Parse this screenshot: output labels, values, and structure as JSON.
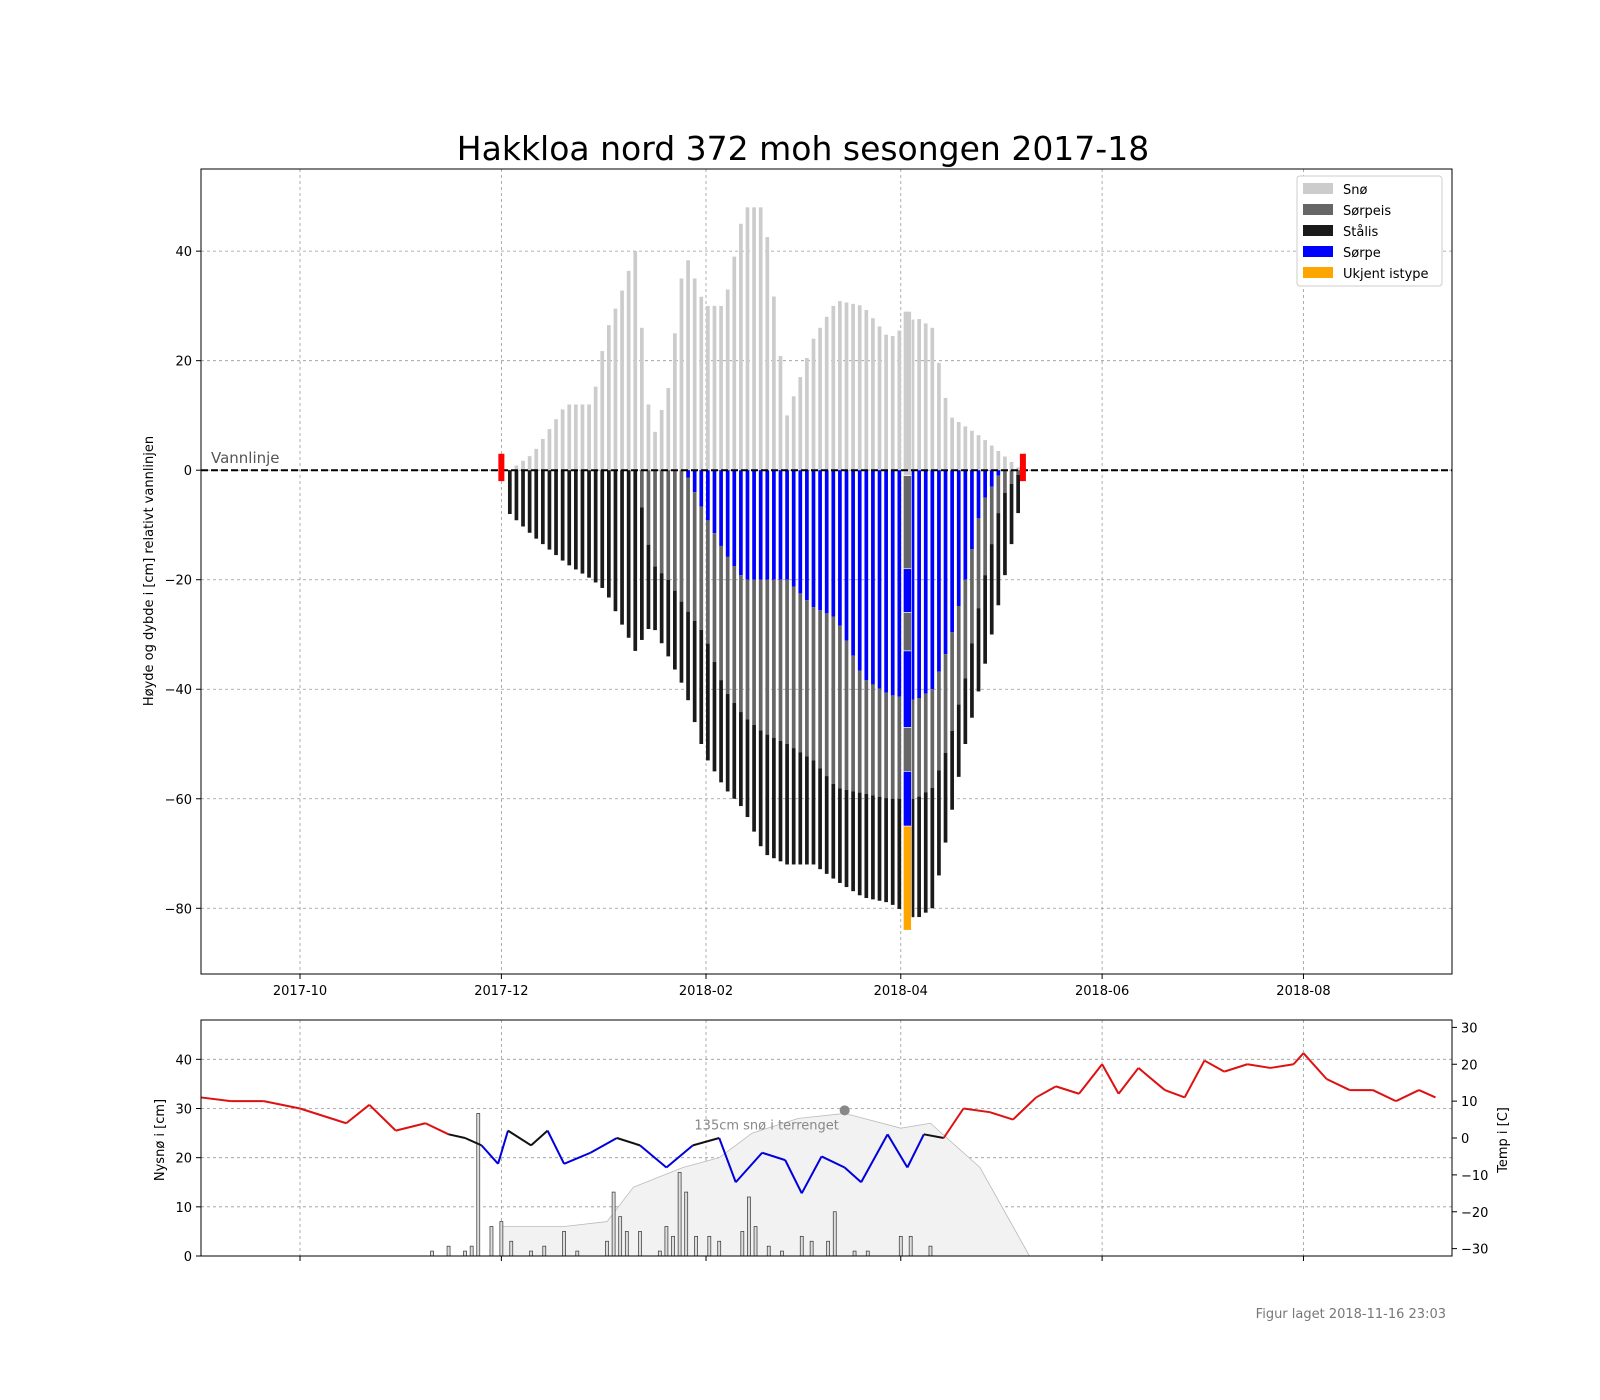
{
  "chart_data": [
    {
      "type": "bar",
      "title": "Hakkloa nord 372 moh sesongen 2017-18",
      "xlabel": "",
      "ylabel": "Høyde og dybde i [cm] relativt vannlinjen",
      "xlim": [
        "2017-09-01",
        "2018-09-15"
      ],
      "ylim": [
        -92,
        55
      ],
      "grid": true,
      "x_tick_labels": [
        "2017-10",
        "2017-12",
        "2018-02",
        "2018-04",
        "2018-06",
        "2018-08"
      ],
      "y_ticks": [
        40,
        20,
        0,
        -20,
        -40,
        -60,
        -80
      ],
      "y_tick_labels": [
        "40",
        "20",
        "0",
        "−20",
        "−40",
        "−60",
        "−80"
      ],
      "waterline_label": "Vannlinje",
      "legend_position": "top-right",
      "legend": [
        {
          "name": "Snø",
          "color": "#cccccc"
        },
        {
          "name": "Sørpeis",
          "color": "#666666"
        },
        {
          "name": "Stålis",
          "color": "#1a1a1a"
        },
        {
          "name": "Sørpe",
          "color": "#0000ff"
        },
        {
          "name": "Ukjent istype",
          "color": "#ffa500"
        }
      ],
      "ice_start_date": "2017-12-01",
      "ice_end_date": "2018-05-08",
      "ice_profile": [
        {
          "date": "2017-12-03",
          "snow_top": 0,
          "slush_bottom": null,
          "sorpeis_bottom": null,
          "ice_bottom": -8
        },
        {
          "date": "2017-12-10",
          "snow_top": 3,
          "slush_bottom": null,
          "sorpeis_bottom": null,
          "ice_bottom": -12
        },
        {
          "date": "2017-12-20",
          "snow_top": 12,
          "slush_bottom": null,
          "sorpeis_bottom": null,
          "ice_bottom": -17
        },
        {
          "date": "2017-12-28",
          "snow_top": 12,
          "slush_bottom": null,
          "sorpeis_bottom": null,
          "ice_bottom": -20
        },
        {
          "date": "2018-01-01",
          "snow_top": 25,
          "slush_bottom": null,
          "sorpeis_bottom": null,
          "ice_bottom": -22
        },
        {
          "date": "2018-01-05",
          "snow_top": 31,
          "slush_bottom": null,
          "sorpeis_bottom": null,
          "ice_bottom": -27
        },
        {
          "date": "2018-01-10",
          "snow_top": 40,
          "slush_bottom": null,
          "sorpeis_bottom": null,
          "ice_bottom": -33
        },
        {
          "date": "2018-01-15",
          "snow_top": 5,
          "slush_bottom": null,
          "sorpeis_bottom": -17,
          "ice_bottom": -28
        },
        {
          "date": "2018-01-20",
          "snow_top": 15,
          "slush_bottom": null,
          "sorpeis_bottom": -20,
          "ice_bottom": -34
        },
        {
          "date": "2018-01-25",
          "snow_top": 40,
          "slush_bottom": null,
          "sorpeis_bottom": -25,
          "ice_bottom": -40
        },
        {
          "date": "2018-01-31",
          "snow_top": 30,
          "slush_bottom": -8,
          "sorpeis_bottom": -30,
          "ice_bottom": -52
        },
        {
          "date": "2018-02-06",
          "snow_top": 30,
          "slush_bottom": -15,
          "sorpeis_bottom": -40,
          "ice_bottom": -58
        },
        {
          "date": "2018-02-12",
          "snow_top": 48,
          "slush_bottom": -20,
          "sorpeis_bottom": -45,
          "ice_bottom": -62
        },
        {
          "date": "2018-02-18",
          "snow_top": 48,
          "slush_bottom": -20,
          "sorpeis_bottom": -48,
          "ice_bottom": -70
        },
        {
          "date": "2018-02-25",
          "snow_top": 10,
          "slush_bottom": -20,
          "sorpeis_bottom": -50,
          "ice_bottom": -72
        },
        {
          "date": "2018-03-05",
          "snow_top": 24,
          "slush_bottom": -25,
          "sorpeis_bottom": -53,
          "ice_bottom": -72
        },
        {
          "date": "2018-03-12",
          "snow_top": 31,
          "slush_bottom": -27,
          "sorpeis_bottom": -58,
          "ice_bottom": -75
        },
        {
          "date": "2018-03-20",
          "snow_top": 30,
          "slush_bottom": -38,
          "sorpeis_bottom": -59,
          "ice_bottom": -78
        },
        {
          "date": "2018-03-28",
          "snow_top": 24,
          "slush_bottom": -41,
          "sorpeis_bottom": -60,
          "ice_bottom": -79
        },
        {
          "date": "2018-04-05",
          "snow_top": 28,
          "slush_bottom": -42,
          "sorpeis_bottom": -60,
          "ice_bottom": -82
        },
        {
          "date": "2018-04-10",
          "snow_top": 26,
          "slush_bottom": -40,
          "sorpeis_bottom": -58,
          "ice_bottom": -80
        },
        {
          "date": "2018-04-15",
          "snow_top": 10,
          "slush_bottom": -32,
          "sorpeis_bottom": -50,
          "ice_bottom": -65
        },
        {
          "date": "2018-04-20",
          "snow_top": 8,
          "slush_bottom": -20,
          "sorpeis_bottom": -38,
          "ice_bottom": -50
        },
        {
          "date": "2018-04-25",
          "snow_top": 6,
          "slush_bottom": -6,
          "sorpeis_bottom": -22,
          "ice_bottom": -38
        },
        {
          "date": "2018-05-01",
          "snow_top": 3,
          "slush_bottom": null,
          "sorpeis_bottom": -5,
          "ice_bottom": -22
        },
        {
          "date": "2018-05-07",
          "snow_top": 0,
          "slush_bottom": null,
          "sorpeis_bottom": null,
          "ice_bottom": -5
        }
      ],
      "measurement": {
        "date": "2018-04-03",
        "layers": [
          {
            "type": "Snø",
            "from": 29,
            "to": -1
          },
          {
            "type": "Sørpeis",
            "from": -1,
            "to": -18
          },
          {
            "type": "Sørpe",
            "from": -18,
            "to": -26
          },
          {
            "type": "Sørpeis",
            "from": -26,
            "to": -33
          },
          {
            "type": "Sørpe",
            "from": -33,
            "to": -47
          },
          {
            "type": "Sørpeis",
            "from": -47,
            "to": -55
          },
          {
            "type": "Sørpe",
            "from": -55,
            "to": -65
          },
          {
            "type": "Ukjent istype",
            "from": -65,
            "to": -84
          }
        ]
      }
    },
    {
      "type": "line",
      "xlim": [
        "2017-09-01",
        "2018-09-15"
      ],
      "ylabel": "Nysnø i [cm]",
      "ylim": [
        0,
        48
      ],
      "y_ticks": [
        0,
        10,
        20,
        30,
        40
      ],
      "y_tick_labels": [
        "0",
        "10",
        "20",
        "30",
        "40"
      ],
      "ylabel_right": "Temp i [C]",
      "ylim_right": [
        -32,
        32
      ],
      "y_ticks_right": [
        30,
        20,
        10,
        0,
        -10,
        -20,
        -30
      ],
      "y_tick_labels_right": [
        "30",
        "20",
        "10",
        "0",
        "−10",
        "−20",
        "−30"
      ],
      "snow_depth_annotation": "135cm snø i terrenget",
      "snow_depth_max": {
        "date": "2018-03-15",
        "temp": 7.5
      },
      "temperature": [
        {
          "date": "2017-09-01",
          "value": 11
        },
        {
          "date": "2017-09-10",
          "value": 10
        },
        {
          "date": "2017-09-20",
          "value": 10
        },
        {
          "date": "2017-10-01",
          "value": 8
        },
        {
          "date": "2017-10-08",
          "value": 6
        },
        {
          "date": "2017-10-15",
          "value": 4
        },
        {
          "date": "2017-10-22",
          "value": 9
        },
        {
          "date": "2017-10-30",
          "value": 2
        },
        {
          "date": "2017-11-08",
          "value": 4
        },
        {
          "date": "2017-11-15",
          "value": 1
        },
        {
          "date": "2017-11-20",
          "value": 0
        },
        {
          "date": "2017-11-25",
          "value": -2
        },
        {
          "date": "2017-11-30",
          "value": -7
        },
        {
          "date": "2017-12-03",
          "value": 2
        },
        {
          "date": "2017-12-10",
          "value": -2
        },
        {
          "date": "2017-12-15",
          "value": 2
        },
        {
          "date": "2017-12-20",
          "value": -7
        },
        {
          "date": "2017-12-28",
          "value": -4
        },
        {
          "date": "2018-01-05",
          "value": 0
        },
        {
          "date": "2018-01-12",
          "value": -2
        },
        {
          "date": "2018-01-20",
          "value": -8
        },
        {
          "date": "2018-01-28",
          "value": -2
        },
        {
          "date": "2018-02-05",
          "value": 0
        },
        {
          "date": "2018-02-10",
          "value": -12
        },
        {
          "date": "2018-02-18",
          "value": -4
        },
        {
          "date": "2018-02-25",
          "value": -6
        },
        {
          "date": "2018-03-02",
          "value": -15
        },
        {
          "date": "2018-03-08",
          "value": -5
        },
        {
          "date": "2018-03-15",
          "value": -8
        },
        {
          "date": "2018-03-20",
          "value": -12
        },
        {
          "date": "2018-03-28",
          "value": 1
        },
        {
          "date": "2018-04-03",
          "value": -8
        },
        {
          "date": "2018-04-08",
          "value": 1
        },
        {
          "date": "2018-04-14",
          "value": 0
        },
        {
          "date": "2018-04-20",
          "value": 8
        },
        {
          "date": "2018-04-28",
          "value": 7
        },
        {
          "date": "2018-05-05",
          "value": 5
        },
        {
          "date": "2018-05-12",
          "value": 11
        },
        {
          "date": "2018-05-18",
          "value": 14
        },
        {
          "date": "2018-05-25",
          "value": 12
        },
        {
          "date": "2018-06-01",
          "value": 20
        },
        {
          "date": "2018-06-06",
          "value": 12
        },
        {
          "date": "2018-06-12",
          "value": 19
        },
        {
          "date": "2018-06-20",
          "value": 13
        },
        {
          "date": "2018-06-26",
          "value": 11
        },
        {
          "date": "2018-07-02",
          "value": 21
        },
        {
          "date": "2018-07-08",
          "value": 18
        },
        {
          "date": "2018-07-15",
          "value": 20
        },
        {
          "date": "2018-07-22",
          "value": 19
        },
        {
          "date": "2018-07-29",
          "value": 20
        },
        {
          "date": "2018-08-01",
          "value": 23
        },
        {
          "date": "2018-08-08",
          "value": 16
        },
        {
          "date": "2018-08-15",
          "value": 13
        },
        {
          "date": "2018-08-22",
          "value": 13
        },
        {
          "date": "2018-08-29",
          "value": 10
        },
        {
          "date": "2018-09-05",
          "value": 13
        },
        {
          "date": "2018-09-10",
          "value": 11
        }
      ],
      "temperature_colors": {
        "above_zero": "#dd1111",
        "below_zero": "#0000dd",
        "near_zero": "#111111"
      },
      "snow_depth_fill_color": "#f2f2f2",
      "new_snow": [
        {
          "date": "2017-11-10",
          "value": 1
        },
        {
          "date": "2017-11-15",
          "value": 2
        },
        {
          "date": "2017-11-20",
          "value": 1
        },
        {
          "date": "2017-11-22",
          "value": 2
        },
        {
          "date": "2017-11-24",
          "value": 29
        },
        {
          "date": "2017-11-28",
          "value": 6
        },
        {
          "date": "2017-12-01",
          "value": 7
        },
        {
          "date": "2017-12-04",
          "value": 3
        },
        {
          "date": "2017-12-10",
          "value": 1
        },
        {
          "date": "2017-12-14",
          "value": 2
        },
        {
          "date": "2017-12-20",
          "value": 5
        },
        {
          "date": "2017-12-24",
          "value": 1
        },
        {
          "date": "2018-01-02",
          "value": 3
        },
        {
          "date": "2018-01-04",
          "value": 13
        },
        {
          "date": "2018-01-06",
          "value": 8
        },
        {
          "date": "2018-01-08",
          "value": 5
        },
        {
          "date": "2018-01-12",
          "value": 5
        },
        {
          "date": "2018-01-18",
          "value": 1
        },
        {
          "date": "2018-01-20",
          "value": 6
        },
        {
          "date": "2018-01-22",
          "value": 4
        },
        {
          "date": "2018-01-24",
          "value": 17
        },
        {
          "date": "2018-01-26",
          "value": 13
        },
        {
          "date": "2018-01-29",
          "value": 4
        },
        {
          "date": "2018-02-02",
          "value": 4
        },
        {
          "date": "2018-02-05",
          "value": 3
        },
        {
          "date": "2018-02-12",
          "value": 5
        },
        {
          "date": "2018-02-14",
          "value": 12
        },
        {
          "date": "2018-02-16",
          "value": 6
        },
        {
          "date": "2018-02-20",
          "value": 2
        },
        {
          "date": "2018-02-24",
          "value": 1
        },
        {
          "date": "2018-03-02",
          "value": 4
        },
        {
          "date": "2018-03-05",
          "value": 3
        },
        {
          "date": "2018-03-10",
          "value": 3
        },
        {
          "date": "2018-03-12",
          "value": 9
        },
        {
          "date": "2018-03-18",
          "value": 1
        },
        {
          "date": "2018-03-22",
          "value": 1
        },
        {
          "date": "2018-04-01",
          "value": 4
        },
        {
          "date": "2018-04-04",
          "value": 4
        },
        {
          "date": "2018-04-10",
          "value": 2
        }
      ],
      "snow_depth": [
        {
          "date": "2017-12-01",
          "value": 6
        },
        {
          "date": "2017-12-20",
          "value": 6
        },
        {
          "date": "2018-01-02",
          "value": 7
        },
        {
          "date": "2018-01-10",
          "value": 14
        },
        {
          "date": "2018-01-25",
          "value": 18
        },
        {
          "date": "2018-02-05",
          "value": 20
        },
        {
          "date": "2018-02-15",
          "value": 25
        },
        {
          "date": "2018-03-01",
          "value": 28
        },
        {
          "date": "2018-03-15",
          "value": 29
        },
        {
          "date": "2018-04-01",
          "value": 26
        },
        {
          "date": "2018-04-10",
          "value": 27
        },
        {
          "date": "2018-04-25",
          "value": 18
        },
        {
          "date": "2018-05-05",
          "value": 6
        },
        {
          "date": "2018-05-10",
          "value": 0
        }
      ]
    }
  ],
  "footer": "Figur laget 2018-11-16 23:03"
}
